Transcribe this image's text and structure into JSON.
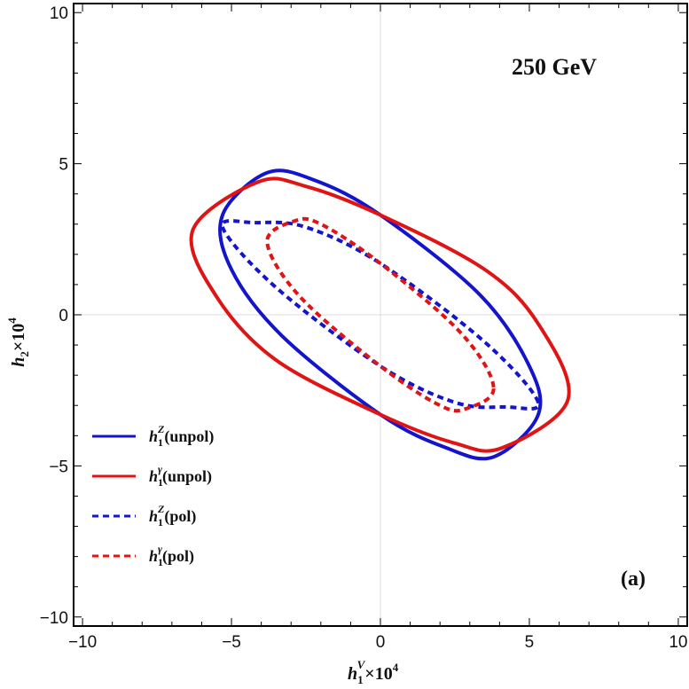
{
  "chart_data": {
    "type": "line",
    "title": "250 GeV",
    "panel_label": "(a)",
    "xlabel": "h_1^V×10^4",
    "ylabel": "h_2×10^4",
    "xlim": [
      -10.3,
      10.3
    ],
    "ylim": [
      -10.3,
      10.3
    ],
    "x_ticks": [
      -10,
      -5,
      0,
      5,
      10
    ],
    "y_ticks": [
      -10,
      -5,
      0,
      5,
      10
    ],
    "x_tick_labels": [
      "−10",
      "−5",
      "0",
      "5",
      "10"
    ],
    "y_tick_labels": [
      "−10",
      "−5",
      "0",
      "5",
      "10"
    ],
    "grid": "zero-lines only",
    "legend_position": "lower-left",
    "series": [
      {
        "name": "h_1^Z(unpol)",
        "color": "#1414cc",
        "style": "solid",
        "shape": "ellipse",
        "points": [
          [
            5.3,
            -3.3
          ],
          [
            4.95,
            -1.6
          ],
          [
            3.3,
            0.7
          ],
          [
            0,
            3.3
          ],
          [
            -2.2,
            4.45
          ],
          [
            -3.8,
            4.7
          ],
          [
            -5.3,
            3.3
          ],
          [
            -5.0,
            1.5
          ],
          [
            -3.3,
            -0.7
          ],
          [
            0,
            -3.3
          ],
          [
            2.2,
            -4.4
          ],
          [
            3.8,
            -4.7
          ],
          [
            5.3,
            -3.3
          ]
        ]
      },
      {
        "name": "h_1^γ(unpol)",
        "color": "#e01414",
        "style": "solid",
        "shape": "ellipse",
        "points": [
          [
            6.3,
            -2.8
          ],
          [
            5.3,
            -0.3
          ],
          [
            3.5,
            1.5
          ],
          [
            0,
            3.3
          ],
          [
            -2.5,
            4.25
          ],
          [
            -4.1,
            4.4
          ],
          [
            -6.3,
            2.8
          ],
          [
            -5.5,
            0.6
          ],
          [
            -3.5,
            -1.5
          ],
          [
            0,
            -3.3
          ],
          [
            2.5,
            -4.25
          ],
          [
            4.1,
            -4.4
          ],
          [
            6.3,
            -2.8
          ]
        ]
      },
      {
        "name": "h_1^Z(pol)",
        "color": "#1414cc",
        "style": "dashed",
        "shape": "ellipse",
        "points": [
          [
            5.3,
            -2.9
          ],
          [
            3.5,
            -0.9
          ],
          [
            0,
            1.7
          ],
          [
            -2.5,
            2.9
          ],
          [
            -4.2,
            3.05
          ],
          [
            -5.3,
            2.9
          ],
          [
            -3.5,
            0.9
          ],
          [
            0,
            -1.7
          ],
          [
            2.5,
            -2.9
          ],
          [
            4.2,
            -3.05
          ],
          [
            5.3,
            -2.9
          ]
        ]
      },
      {
        "name": "h_1^γ(pol)",
        "color": "#e01414",
        "style": "dashed",
        "shape": "ellipse",
        "points": [
          [
            3.8,
            -2.4
          ],
          [
            2.7,
            -0.6
          ],
          [
            0,
            1.7
          ],
          [
            -2.0,
            3.0
          ],
          [
            -2.9,
            3.1
          ],
          [
            -3.8,
            2.4
          ],
          [
            -2.7,
            0.6
          ],
          [
            0,
            -1.7
          ],
          [
            2.0,
            -3.0
          ],
          [
            2.9,
            -3.1
          ],
          [
            3.8,
            -2.4
          ]
        ]
      }
    ],
    "legend": [
      {
        "sym": "h",
        "sub": "1",
        "sup": "Z",
        "suffix": "(unpol)"
      },
      {
        "sym": "h",
        "sub": "1",
        "sup": "γ",
        "suffix": "(unpol)"
      },
      {
        "sym": "h",
        "sub": "1",
        "sup": "Z",
        "suffix": "(pol)"
      },
      {
        "sym": "h",
        "sub": "1",
        "sup": "γ",
        "suffix": "(pol)"
      }
    ]
  }
}
